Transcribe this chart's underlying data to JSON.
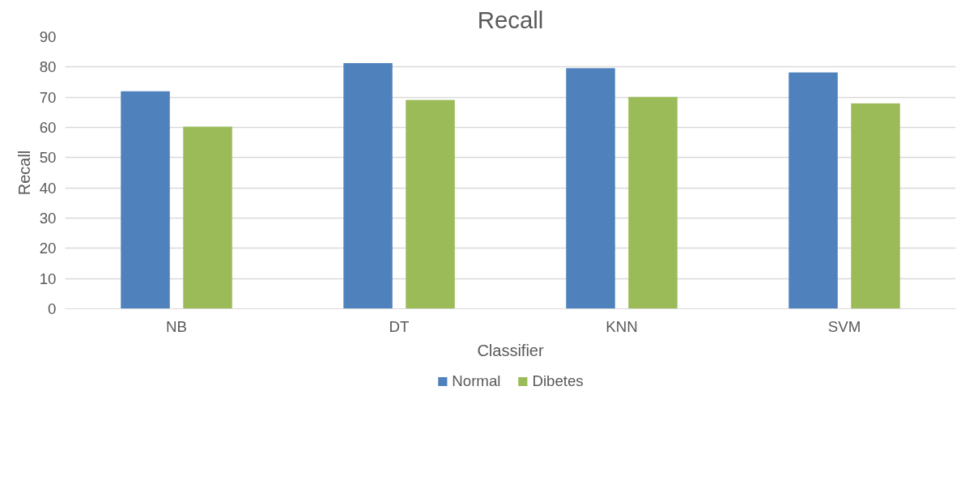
{
  "chart_data": {
    "type": "bar",
    "title": "Recall",
    "xlabel": "Classifier",
    "ylabel": "Recall",
    "categories": [
      "NB",
      "DT",
      "KNN",
      "SVM"
    ],
    "series": [
      {
        "name": "Normal",
        "color": "#4f81bd",
        "values": [
          72.0,
          81.3,
          79.6,
          78.2
        ]
      },
      {
        "name": "Dibetes",
        "color": "#9bbb59",
        "values": [
          60.3,
          69.1,
          70.1,
          68.0
        ]
      }
    ],
    "ylim": [
      0,
      90
    ],
    "yticks": [
      0,
      10,
      20,
      30,
      40,
      50,
      60,
      70,
      80,
      90
    ],
    "grid": "y",
    "legend": "bottom"
  }
}
